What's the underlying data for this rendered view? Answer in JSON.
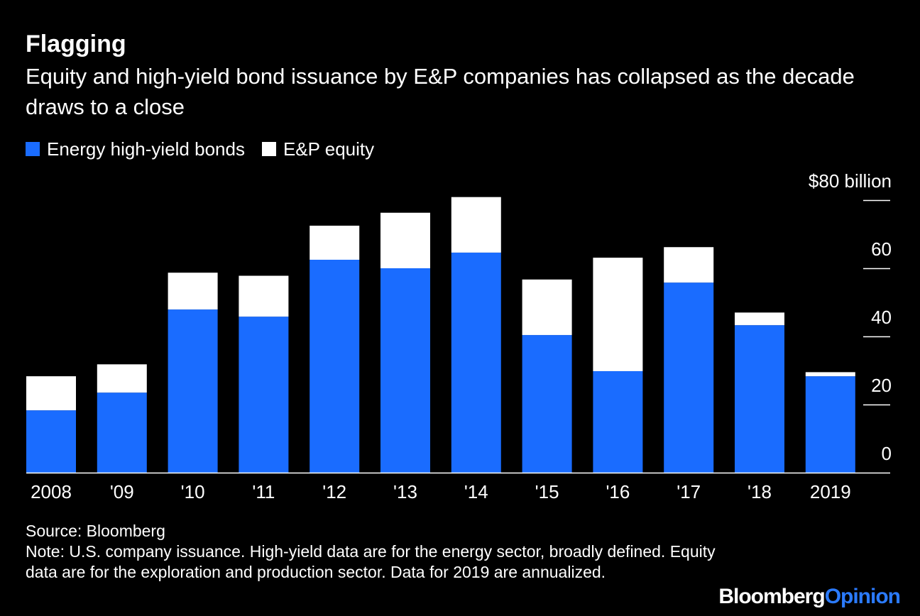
{
  "header": {
    "title": "Flagging",
    "subtitle": "Equity and high-yield bond issuance by E&P companies has collapsed as the decade draws to a close"
  },
  "legend": {
    "items": [
      {
        "label": "Energy high-yield bonds",
        "color": "#1A6CFF"
      },
      {
        "label": "E&P equity",
        "color": "#FFFFFF"
      }
    ]
  },
  "chart_data": {
    "type": "bar",
    "stacked": true,
    "categories": [
      "2008",
      "'09",
      "'10",
      "'11",
      "'12",
      "'13",
      "'14",
      "'15",
      "'16",
      "'17",
      "'18",
      "2019"
    ],
    "series": [
      {
        "name": "Energy high-yield bonds",
        "color": "#1A6CFF",
        "values": [
          18.3,
          23.5,
          47.9,
          45.8,
          62.5,
          60.0,
          64.6,
          40.4,
          29.8,
          55.8,
          43.3,
          28.3
        ]
      },
      {
        "name": "E&P equity",
        "color": "#FFFFFF",
        "values": [
          10.0,
          8.3,
          10.8,
          12.0,
          10.0,
          16.3,
          16.3,
          16.3,
          33.3,
          10.4,
          3.7,
          1.2
        ]
      }
    ],
    "ylim": [
      0,
      80
    ],
    "yticks": [
      0,
      20,
      40,
      60,
      80
    ],
    "ytick_labels": [
      "0",
      "20",
      "40",
      "60",
      "$80 billion"
    ],
    "yaxis_side": "right",
    "xlabel": "",
    "ylabel": ""
  },
  "footer": {
    "source": "Source: Bloomberg",
    "note": "Note: U.S. company issuance. High-yield data are for the energy sector, broadly defined. Equity data are for the exploration and production sector. Data for 2019 are annualized."
  },
  "brand": {
    "name": "Bloomberg",
    "suffix": "Opinion",
    "suffix_color": "#2B7BFF"
  }
}
